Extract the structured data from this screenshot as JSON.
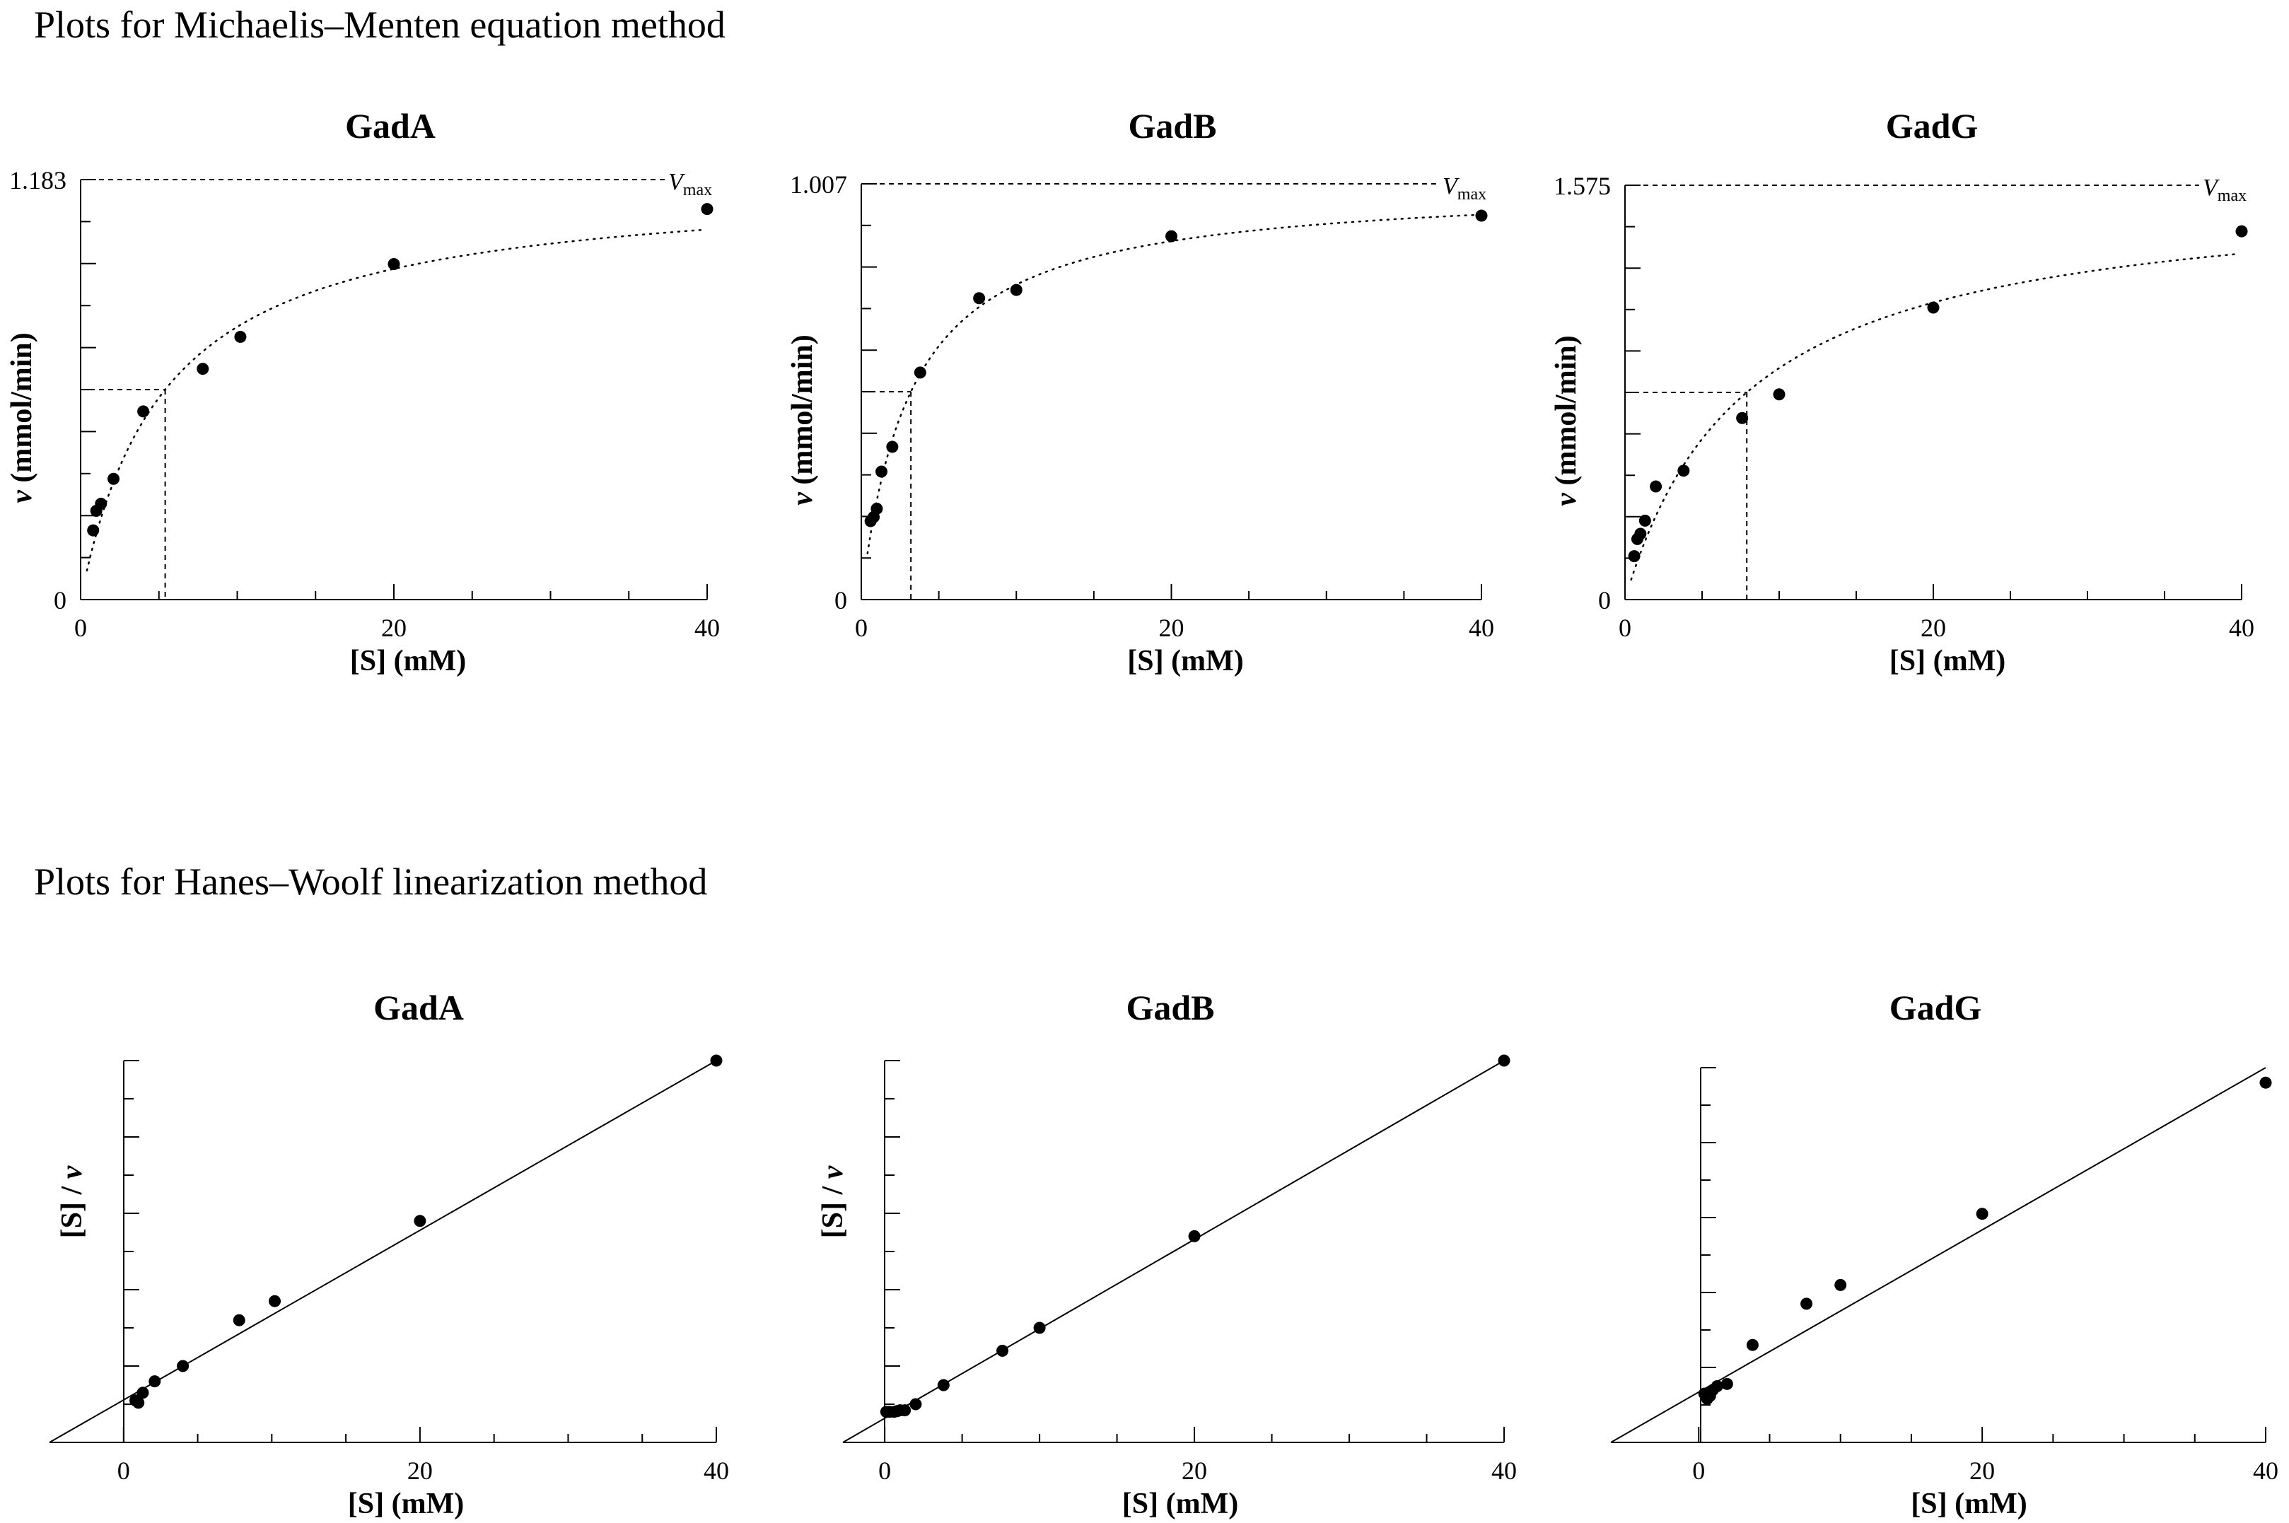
{
  "sections": {
    "mm_title": "Plots for Michaelis–Menten equation method",
    "hw_title": "Plots for Hanes–Woolf linearization method"
  },
  "vmax_label": {
    "main": "V",
    "sub": "max"
  },
  "chart_data": [
    {
      "id": "mm-gada",
      "type": "scatter",
      "method": "Michaelis-Menten",
      "title": "GadA",
      "xlabel": "[S] (mM)",
      "ylabel": "v (mmol/min)",
      "xlim": [
        0,
        40
      ],
      "ylim": [
        0,
        1.183
      ],
      "xticks": [
        0,
        20,
        40
      ],
      "yticks": [
        0,
        1.183
      ],
      "vmax": 1.183,
      "km": 5.4,
      "x": [
        0.8,
        1.0,
        1.3,
        2.1,
        4.0,
        7.8,
        10.2,
        20.0,
        40.0
      ],
      "y": [
        0.195,
        0.25,
        0.27,
        0.34,
        0.53,
        0.65,
        0.74,
        0.945,
        1.1
      ]
    },
    {
      "id": "mm-gadb",
      "type": "scatter",
      "method": "Michaelis-Menten",
      "title": "GadB",
      "xlabel": "[S] (mM)",
      "ylabel": "v (mmol/min)",
      "xlim": [
        0,
        40
      ],
      "ylim": [
        0,
        1.007
      ],
      "xticks": [
        0,
        20,
        40
      ],
      "yticks": [
        0,
        1.007
      ],
      "vmax": 1.007,
      "km": 3.2,
      "x": [
        0.6,
        0.8,
        1.0,
        1.3,
        2.0,
        3.8,
        7.6,
        10.0,
        20.0,
        40.0
      ],
      "y": [
        0.19,
        0.2,
        0.22,
        0.31,
        0.37,
        0.55,
        0.73,
        0.75,
        0.88,
        0.93
      ]
    },
    {
      "id": "mm-gadg",
      "type": "scatter",
      "method": "Michaelis-Menten",
      "title": "GadG",
      "xlabel": "[S] (mM)",
      "ylabel": "v (mmol/min)",
      "xlim": [
        0,
        40
      ],
      "ylim": [
        0,
        1.575
      ],
      "xticks": [
        0,
        20,
        40
      ],
      "yticks": [
        0,
        1.575
      ],
      "vmax": 1.575,
      "km": 7.9,
      "x": [
        0.6,
        0.8,
        1.0,
        1.3,
        2.0,
        3.8,
        7.6,
        10.0,
        20.0,
        40.0
      ],
      "y": [
        0.165,
        0.23,
        0.25,
        0.3,
        0.43,
        0.49,
        0.69,
        0.78,
        1.11,
        1.4
      ]
    },
    {
      "id": "hw-gada",
      "type": "scatter",
      "method": "Hanes-Woolf",
      "title": "GadA",
      "xlabel": "[S] (mM)",
      "ylabel": "[S] / v",
      "xlim": [
        -5,
        40
      ],
      "ylim": [
        0,
        50
      ],
      "xticks": [
        0,
        20,
        40
      ],
      "x": [
        0.8,
        1.0,
        1.3,
        2.1,
        4.0,
        7.8,
        10.2,
        20.0,
        40.0
      ],
      "y": [
        5.5,
        5.2,
        6.5,
        8.0,
        10.0,
        16.0,
        18.5,
        29.0,
        50.0
      ],
      "fit_line": [
        [
          -5,
          0
        ],
        [
          40,
          50
        ]
      ]
    },
    {
      "id": "hw-gadb",
      "type": "scatter",
      "method": "Hanes-Woolf",
      "title": "GadB",
      "xlabel": "[S] (mM)",
      "ylabel": "[S] / v",
      "xlim": [
        -2.7,
        40
      ],
      "ylim": [
        0,
        50
      ],
      "xticks": [
        0,
        20,
        40
      ],
      "x": [
        0.1,
        0.3,
        0.6,
        0.8,
        1.0,
        1.3,
        2.0,
        3.8,
        7.6,
        10.0,
        20.0,
        40.0
      ],
      "y": [
        4.0,
        4.0,
        4.0,
        4.1,
        4.2,
        4.2,
        5.0,
        7.5,
        12.0,
        15.0,
        27.0,
        50.0
      ],
      "fit_line": [
        [
          -2.7,
          0
        ],
        [
          40,
          50
        ]
      ]
    },
    {
      "id": "hw-gadg",
      "type": "scatter",
      "method": "Hanes-Woolf",
      "title": "GadG",
      "xlabel": "[S] (mM)",
      "ylabel": "",
      "xlim": [
        -6.2,
        40
      ],
      "ylim": [
        0,
        50
      ],
      "xticks": [
        0,
        20,
        40
      ],
      "x": [
        0.4,
        0.6,
        0.8,
        1.0,
        1.3,
        2.0,
        3.8,
        7.6,
        10.0,
        20.0,
        40.0
      ],
      "y": [
        6.5,
        5.8,
        6.2,
        7.0,
        7.5,
        7.8,
        13.0,
        18.5,
        21.0,
        30.5,
        48.0
      ],
      "fit_line": [
        [
          -6.2,
          0
        ],
        [
          40,
          50
        ]
      ]
    }
  ]
}
